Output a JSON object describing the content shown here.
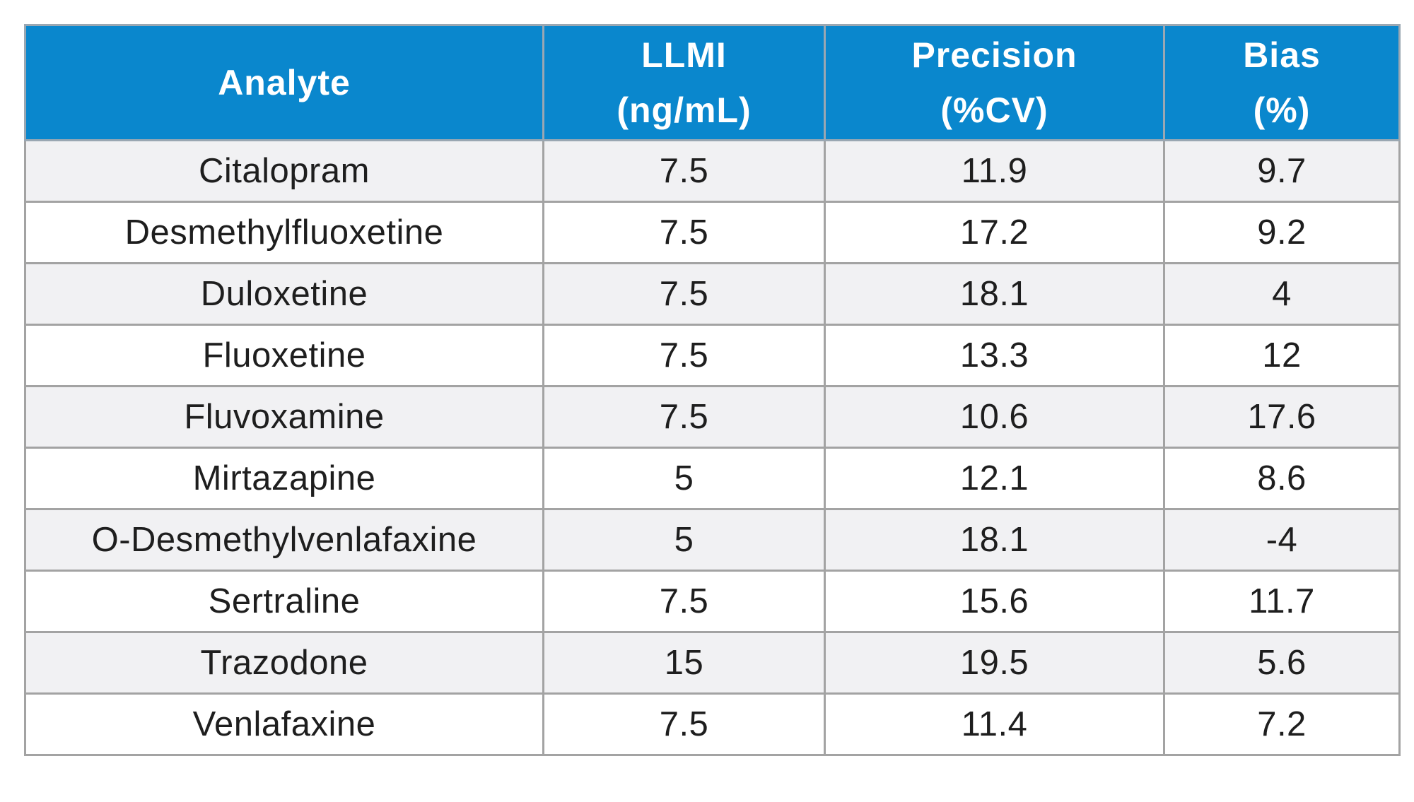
{
  "chart_data": {
    "type": "table",
    "columns": [
      {
        "lines": [
          "Analyte"
        ]
      },
      {
        "lines": [
          "LLMI",
          "(ng/mL)"
        ]
      },
      {
        "lines": [
          "Precision",
          "(%CV)"
        ]
      },
      {
        "lines": [
          "Bias",
          "(%)"
        ]
      }
    ],
    "rows": [
      [
        "Citalopram",
        "7.5",
        "11.9",
        "9.7"
      ],
      [
        "Desmethylfluoxetine",
        "7.5",
        "17.2",
        "9.2"
      ],
      [
        "Duloxetine",
        "7.5",
        "18.1",
        "4"
      ],
      [
        "Fluoxetine",
        "7.5",
        "13.3",
        "12"
      ],
      [
        "Fluvoxamine",
        "7.5",
        "10.6",
        "17.6"
      ],
      [
        "Mirtazapine",
        "5",
        "12.1",
        "8.6"
      ],
      [
        "O-Desmethylvenlafaxine",
        "5",
        "18.1",
        "-4"
      ],
      [
        "Sertraline",
        "7.5",
        "15.6",
        "11.7"
      ],
      [
        "Trazodone",
        "15",
        "19.5",
        "5.6"
      ],
      [
        "Venlafaxine",
        "7.5",
        "11.4",
        "7.2"
      ]
    ],
    "colors": {
      "header_background": "#0a87cd",
      "header_text": "#ffffff",
      "row_odd_background": "#f1f1f3",
      "row_even_background": "#ffffff",
      "border": "#a3a3a3",
      "cell_text": "#1e1e1e"
    }
  }
}
